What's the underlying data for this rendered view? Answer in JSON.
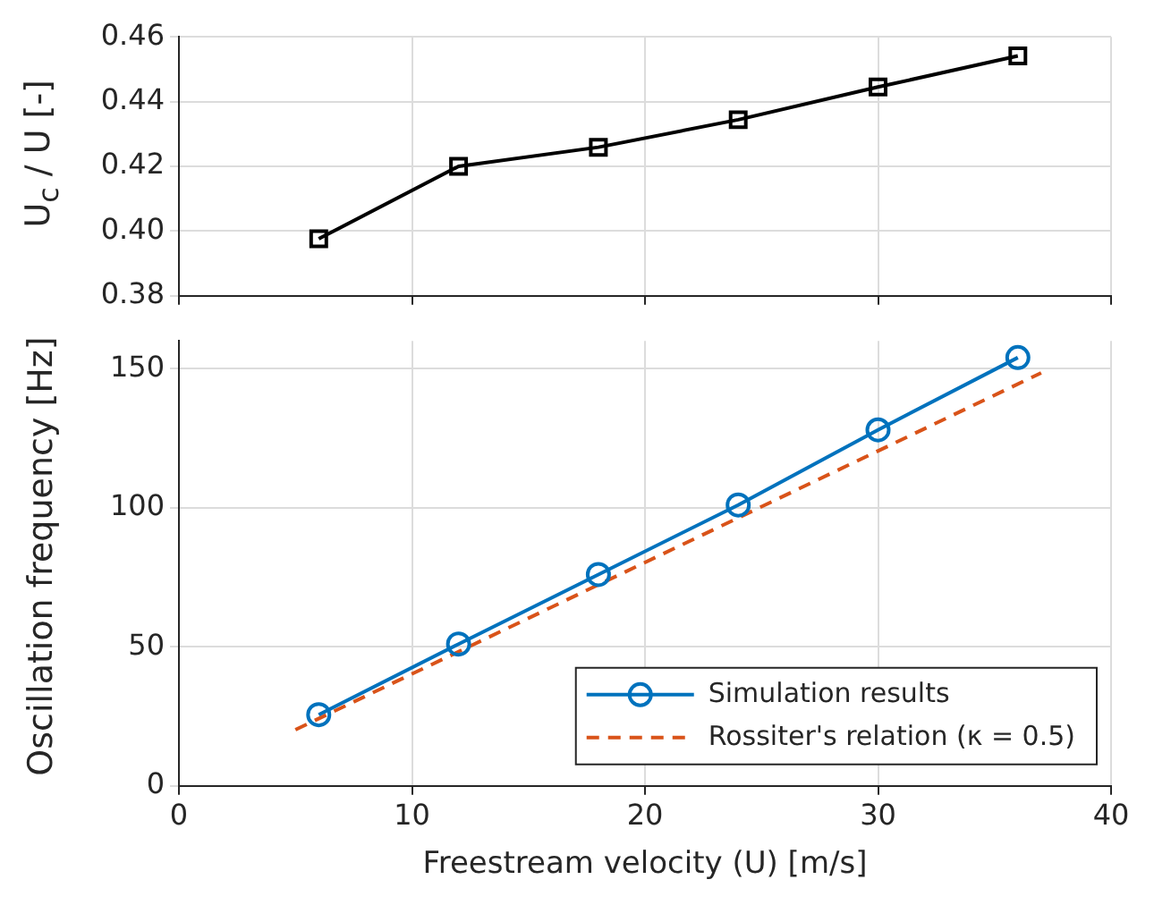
{
  "chart_data": [
    {
      "type": "line",
      "ylabel": "U$_{c}$ / U [-]",
      "x": [
        6,
        12,
        18,
        24,
        30,
        36
      ],
      "series": [
        {
          "color": "#000000",
          "values": [
            0.3976,
            0.42,
            0.4259,
            0.4344,
            0.4445,
            0.4541
          ]
        }
      ],
      "xlim": [
        0,
        40
      ],
      "xticks": [
        0,
        10,
        20,
        30,
        40
      ],
      "ylim": [
        0.38,
        0.46
      ],
      "yticks": [
        0.38,
        {
          "value": 0.4,
          "label": "0.40"
        },
        0.42,
        0.44,
        0.46
      ],
      "tick_labels": "y",
      "grid": true,
      "marker": "square",
      "line_style": "solid"
    },
    {
      "type": "line",
      "xlabel": "Freestream velocity (U) [m/s]",
      "ylabel": "Oscillation frequency [Hz]",
      "x": [
        6,
        12,
        18,
        24,
        30,
        36
      ],
      "series": [
        {
          "name": "Simulation results",
          "color": "#0072bd",
          "values": [
            25.6,
            51,
            76,
            101,
            128,
            154
          ]
        },
        {
          "name": "Rossiter's relation (κ = 0.5)",
          "color": "#d95319",
          "x": [
            5,
            37
          ],
          "values": [
            20.2,
            148.5
          ],
          "marker": "none",
          "line_style": "dashed"
        }
      ],
      "xlim": [
        0,
        40
      ],
      "xticks": [
        0,
        10,
        20,
        30,
        40
      ],
      "ylim": [
        0,
        160
      ],
      "yticks": [
        0,
        50,
        100,
        150
      ],
      "grid": true,
      "marker": "circle",
      "line_style": "solid",
      "legend": "bottom right"
    }
  ]
}
